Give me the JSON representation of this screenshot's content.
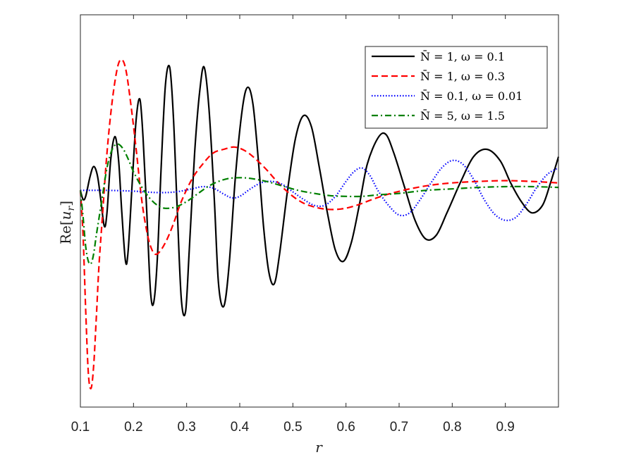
{
  "chart_data": {
    "type": "line",
    "xlabel": "r",
    "ylabel": "Re[u_r]",
    "xlim": [
      0.1,
      1.0
    ],
    "x_ticks": [
      0.1,
      0.2,
      0.3,
      0.4,
      0.5,
      0.6,
      0.7,
      0.8,
      0.9
    ],
    "x_tick_labels": [
      "0.1",
      "0.2",
      "0.3",
      "0.4",
      "0.5",
      "0.6",
      "0.7",
      "0.8",
      "0.9"
    ],
    "y_ticks_shown": false,
    "grid": false,
    "legend_position": "top-right",
    "series": [
      {
        "name": "N̄ = 1, ω = 0.1",
        "color": "#000000",
        "style": "solid",
        "points": [
          [
            0.1,
            0.0
          ],
          [
            0.105,
            -0.12
          ],
          [
            0.11,
            -0.08
          ],
          [
            0.118,
            0.18
          ],
          [
            0.125,
            0.32
          ],
          [
            0.132,
            0.2
          ],
          [
            0.138,
            -0.1
          ],
          [
            0.145,
            -0.48
          ],
          [
            0.15,
            -0.3
          ],
          [
            0.157,
            0.4
          ],
          [
            0.165,
            0.72
          ],
          [
            0.172,
            0.4
          ],
          [
            0.178,
            -0.3
          ],
          [
            0.185,
            -0.95
          ],
          [
            0.19,
            -0.8
          ],
          [
            0.198,
            0.15
          ],
          [
            0.205,
            0.95
          ],
          [
            0.212,
            1.22
          ],
          [
            0.218,
            0.7
          ],
          [
            0.225,
            -0.3
          ],
          [
            0.232,
            -1.35
          ],
          [
            0.238,
            -1.5
          ],
          [
            0.245,
            -0.9
          ],
          [
            0.252,
            0.3
          ],
          [
            0.26,
            1.4
          ],
          [
            0.268,
            1.65
          ],
          [
            0.275,
            1.0
          ],
          [
            0.282,
            -0.2
          ],
          [
            0.29,
            -1.45
          ],
          [
            0.298,
            -1.62
          ],
          [
            0.305,
            -0.8
          ],
          [
            0.315,
            0.5
          ],
          [
            0.325,
            1.35
          ],
          [
            0.333,
            1.65
          ],
          [
            0.342,
            1.1
          ],
          [
            0.352,
            -0.1
          ],
          [
            0.36,
            -1.25
          ],
          [
            0.37,
            -1.55
          ],
          [
            0.38,
            -1.0
          ],
          [
            0.392,
            0.2
          ],
          [
            0.405,
            1.1
          ],
          [
            0.415,
            1.38
          ],
          [
            0.425,
            1.15
          ],
          [
            0.435,
            0.4
          ],
          [
            0.445,
            -0.5
          ],
          [
            0.455,
            -1.1
          ],
          [
            0.465,
            -1.25
          ],
          [
            0.475,
            -0.85
          ],
          [
            0.49,
            0.0
          ],
          [
            0.505,
            0.7
          ],
          [
            0.52,
            1.0
          ],
          [
            0.535,
            0.85
          ],
          [
            0.55,
            0.3
          ],
          [
            0.565,
            -0.3
          ],
          [
            0.58,
            -0.8
          ],
          [
            0.595,
            -0.95
          ],
          [
            0.61,
            -0.7
          ],
          [
            0.625,
            -0.2
          ],
          [
            0.64,
            0.35
          ],
          [
            0.66,
            0.7
          ],
          [
            0.675,
            0.75
          ],
          [
            0.69,
            0.5
          ],
          [
            0.71,
            0.05
          ],
          [
            0.73,
            -0.4
          ],
          [
            0.75,
            -0.65
          ],
          [
            0.77,
            -0.6
          ],
          [
            0.79,
            -0.3
          ],
          [
            0.815,
            0.1
          ],
          [
            0.84,
            0.45
          ],
          [
            0.865,
            0.55
          ],
          [
            0.89,
            0.4
          ],
          [
            0.91,
            0.1
          ],
          [
            0.93,
            -0.15
          ],
          [
            0.95,
            -0.3
          ],
          [
            0.97,
            -0.2
          ],
          [
            0.985,
            0.1
          ],
          [
            1.0,
            0.45
          ]
        ]
      },
      {
        "name": "N̄ = 1, ω = 0.3",
        "color": "#ff0000",
        "style": "dashed",
        "points": [
          [
            0.1,
            0.0
          ],
          [
            0.105,
            -0.6
          ],
          [
            0.11,
            -1.6
          ],
          [
            0.115,
            -2.45
          ],
          [
            0.12,
            -2.65
          ],
          [
            0.125,
            -2.35
          ],
          [
            0.13,
            -1.7
          ],
          [
            0.135,
            -1.0
          ],
          [
            0.142,
            -0.3
          ],
          [
            0.15,
            0.5
          ],
          [
            0.16,
            1.2
          ],
          [
            0.17,
            1.65
          ],
          [
            0.178,
            1.75
          ],
          [
            0.186,
            1.6
          ],
          [
            0.195,
            1.15
          ],
          [
            0.205,
            0.55
          ],
          [
            0.215,
            -0.1
          ],
          [
            0.225,
            -0.55
          ],
          [
            0.235,
            -0.8
          ],
          [
            0.245,
            -0.85
          ],
          [
            0.26,
            -0.7
          ],
          [
            0.275,
            -0.45
          ],
          [
            0.29,
            -0.15
          ],
          [
            0.31,
            0.15
          ],
          [
            0.33,
            0.35
          ],
          [
            0.35,
            0.5
          ],
          [
            0.37,
            0.55
          ],
          [
            0.39,
            0.58
          ],
          [
            0.41,
            0.53
          ],
          [
            0.43,
            0.42
          ],
          [
            0.45,
            0.28
          ],
          [
            0.47,
            0.12
          ],
          [
            0.49,
            -0.02
          ],
          [
            0.51,
            -0.13
          ],
          [
            0.53,
            -0.2
          ],
          [
            0.56,
            -0.25
          ],
          [
            0.59,
            -0.25
          ],
          [
            0.62,
            -0.2
          ],
          [
            0.65,
            -0.12
          ],
          [
            0.68,
            -0.05
          ],
          [
            0.72,
            0.02
          ],
          [
            0.76,
            0.07
          ],
          [
            0.8,
            0.1
          ],
          [
            0.85,
            0.12
          ],
          [
            0.9,
            0.13
          ],
          [
            0.95,
            0.12
          ],
          [
            1.0,
            0.1
          ]
        ]
      },
      {
        "name": "N̄ = 0.1, ω = 0.01",
        "color": "#0000ff",
        "style": "dotted",
        "points": [
          [
            0.1,
            0.0
          ],
          [
            0.15,
            0.0
          ],
          [
            0.2,
            -0.01
          ],
          [
            0.22,
            -0.02
          ],
          [
            0.25,
            -0.03
          ],
          [
            0.28,
            -0.02
          ],
          [
            0.31,
            0.02
          ],
          [
            0.33,
            0.05
          ],
          [
            0.35,
            0.03
          ],
          [
            0.37,
            -0.05
          ],
          [
            0.385,
            -0.1
          ],
          [
            0.4,
            -0.08
          ],
          [
            0.42,
            0.02
          ],
          [
            0.44,
            0.1
          ],
          [
            0.46,
            0.12
          ],
          [
            0.48,
            0.08
          ],
          [
            0.5,
            -0.02
          ],
          [
            0.52,
            -0.12
          ],
          [
            0.54,
            -0.2
          ],
          [
            0.56,
            -0.2
          ],
          [
            0.58,
            -0.08
          ],
          [
            0.6,
            0.12
          ],
          [
            0.615,
            0.25
          ],
          [
            0.63,
            0.3
          ],
          [
            0.645,
            0.2
          ],
          [
            0.66,
            0.0
          ],
          [
            0.68,
            -0.2
          ],
          [
            0.7,
            -0.33
          ],
          [
            0.72,
            -0.3
          ],
          [
            0.74,
            -0.12
          ],
          [
            0.76,
            0.1
          ],
          [
            0.78,
            0.3
          ],
          [
            0.8,
            0.4
          ],
          [
            0.82,
            0.35
          ],
          [
            0.84,
            0.15
          ],
          [
            0.86,
            -0.12
          ],
          [
            0.88,
            -0.32
          ],
          [
            0.9,
            -0.4
          ],
          [
            0.92,
            -0.36
          ],
          [
            0.94,
            -0.18
          ],
          [
            0.96,
            0.05
          ],
          [
            0.98,
            0.22
          ],
          [
            1.0,
            0.3
          ]
        ]
      },
      {
        "name": "N̄ = 5, ω = 1.5",
        "color": "#008000",
        "style": "dashdot",
        "points": [
          [
            0.1,
            0.0
          ],
          [
            0.105,
            -0.35
          ],
          [
            0.11,
            -0.75
          ],
          [
            0.115,
            -0.95
          ],
          [
            0.12,
            -0.98
          ],
          [
            0.125,
            -0.85
          ],
          [
            0.13,
            -0.6
          ],
          [
            0.14,
            -0.15
          ],
          [
            0.15,
            0.3
          ],
          [
            0.16,
            0.55
          ],
          [
            0.17,
            0.62
          ],
          [
            0.18,
            0.56
          ],
          [
            0.19,
            0.42
          ],
          [
            0.2,
            0.25
          ],
          [
            0.215,
            0.05
          ],
          [
            0.23,
            -0.1
          ],
          [
            0.245,
            -0.2
          ],
          [
            0.26,
            -0.24
          ],
          [
            0.28,
            -0.22
          ],
          [
            0.3,
            -0.15
          ],
          [
            0.32,
            -0.05
          ],
          [
            0.34,
            0.05
          ],
          [
            0.36,
            0.12
          ],
          [
            0.38,
            0.16
          ],
          [
            0.4,
            0.17
          ],
          [
            0.42,
            0.16
          ],
          [
            0.45,
            0.12
          ],
          [
            0.48,
            0.06
          ],
          [
            0.51,
            0.0
          ],
          [
            0.54,
            -0.04
          ],
          [
            0.57,
            -0.07
          ],
          [
            0.6,
            -0.08
          ],
          [
            0.63,
            -0.08
          ],
          [
            0.66,
            -0.06
          ],
          [
            0.7,
            -0.04
          ],
          [
            0.75,
            0.0
          ],
          [
            0.8,
            0.02
          ],
          [
            0.85,
            0.04
          ],
          [
            0.9,
            0.05
          ],
          [
            0.95,
            0.05
          ],
          [
            1.0,
            0.04
          ]
        ]
      }
    ]
  }
}
